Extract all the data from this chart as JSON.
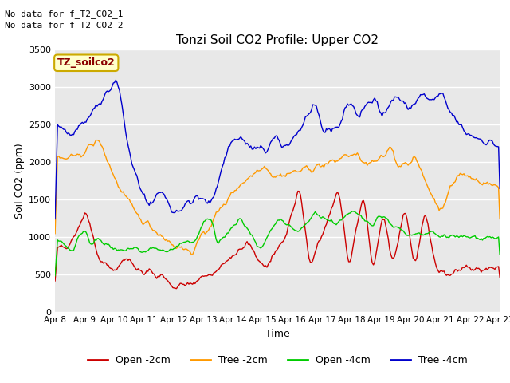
{
  "title": "Tonzi Soil CO2 Profile: Upper CO2",
  "ylabel": "Soil CO2 (ppm)",
  "xlabel": "Time",
  "annotations": [
    "No data for f_T2_CO2_1",
    "No data for f_T2_CO2_2"
  ],
  "legend_label": "TZ_soilco2",
  "xtick_labels": [
    "Apr 8",
    "Apr 9",
    "Apr 10",
    "Apr 11",
    "Apr 12",
    "Apr 13",
    "Apr 14",
    "Apr 15",
    "Apr 16",
    "Apr 17",
    "Apr 18",
    "Apr 19",
    "Apr 20",
    "Apr 21",
    "Apr 22",
    "Apr 23"
  ],
  "ylim": [
    0,
    3500
  ],
  "series_colors": {
    "open_2cm": "#cc0000",
    "tree_2cm": "#ff9900",
    "open_4cm": "#00cc00",
    "tree_4cm": "#0000cc"
  },
  "legend_entries": [
    {
      "label": "Open -2cm",
      "color": "#cc0000"
    },
    {
      "label": "Tree -2cm",
      "color": "#ff9900"
    },
    {
      "label": "Open -4cm",
      "color": "#00cc00"
    },
    {
      "label": "Tree -4cm",
      "color": "#0000cc"
    }
  ],
  "fig_facecolor": "#ffffff",
  "ax_facecolor": "#e8e8e8",
  "n_points": 360
}
